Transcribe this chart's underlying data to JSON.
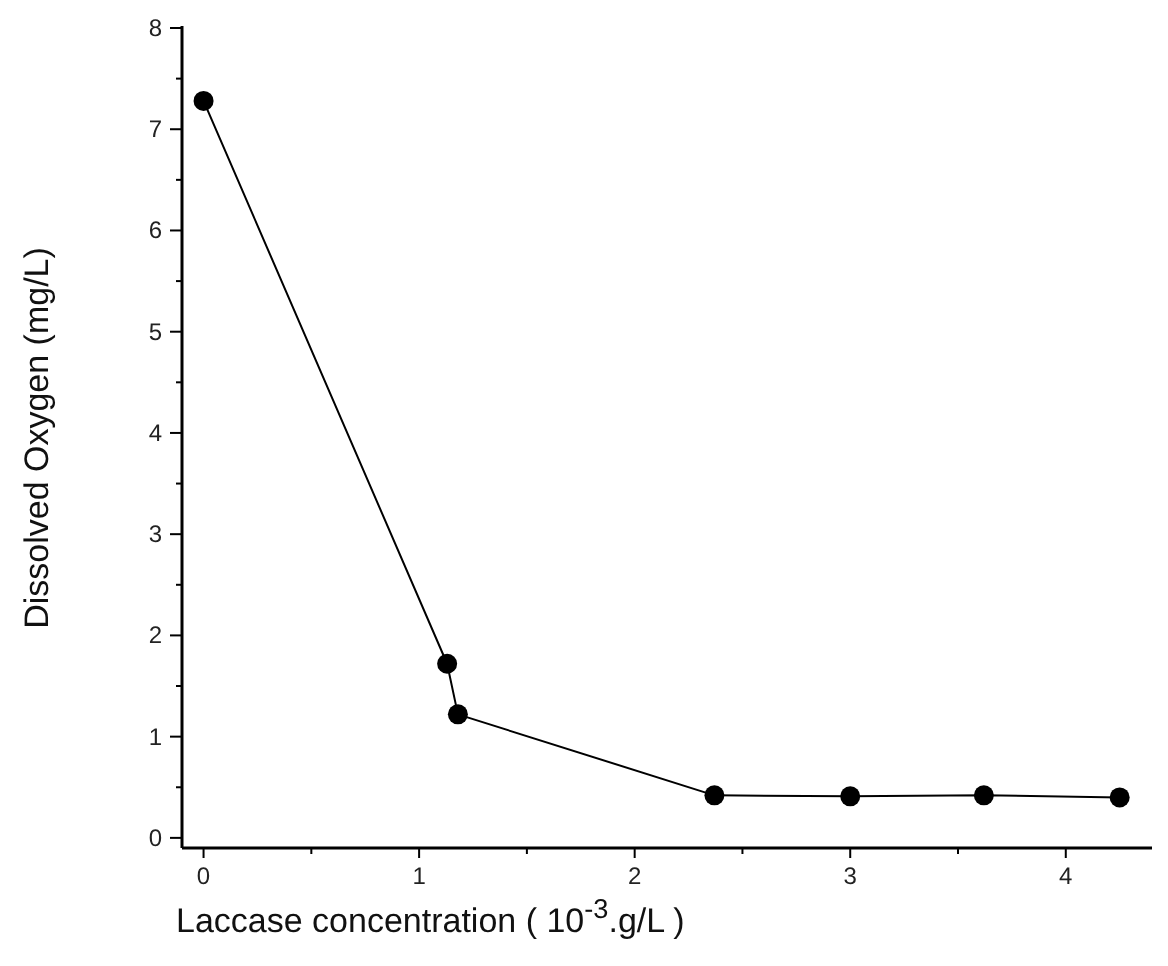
{
  "chart_data": {
    "type": "line",
    "xlabel": "Laccase concentration ( 10$^{-3}$.g/L )",
    "ylabel": "Dissolved Oxygen (mg/L)",
    "x": [
      0,
      1.13,
      1.18,
      2.37,
      3.0,
      3.62,
      4.25
    ],
    "series": [
      {
        "color": "#000000",
        "values": [
          7.28,
          1.72,
          1.22,
          0.42,
          0.41,
          0.42,
          0.4
        ]
      }
    ],
    "xlim": [
      -0.1,
      4.4
    ],
    "ylim": [
      -0.1,
      8
    ],
    "xticks": [
      0,
      {
        "value": 0.5,
        "label": null
      },
      1,
      {
        "value": 1.5,
        "label": null
      },
      2,
      {
        "value": 2.5,
        "label": null
      },
      3,
      {
        "value": 3.5,
        "label": null
      },
      4
    ],
    "yticks": [
      0,
      {
        "value": 0.5,
        "label": null
      },
      1,
      {
        "value": 1.5,
        "label": null
      },
      2,
      {
        "value": 2.5,
        "label": null
      },
      3,
      {
        "value": 3.5,
        "label": null
      },
      4,
      {
        "value": 4.5,
        "label": null
      },
      5,
      {
        "value": 5.5,
        "label": null
      },
      6,
      {
        "value": 6.5,
        "label": null
      },
      7,
      {
        "value": 7.5,
        "label": null
      },
      8
    ],
    "marker": "circle",
    "line_style": "solid",
    "grid": false
  }
}
